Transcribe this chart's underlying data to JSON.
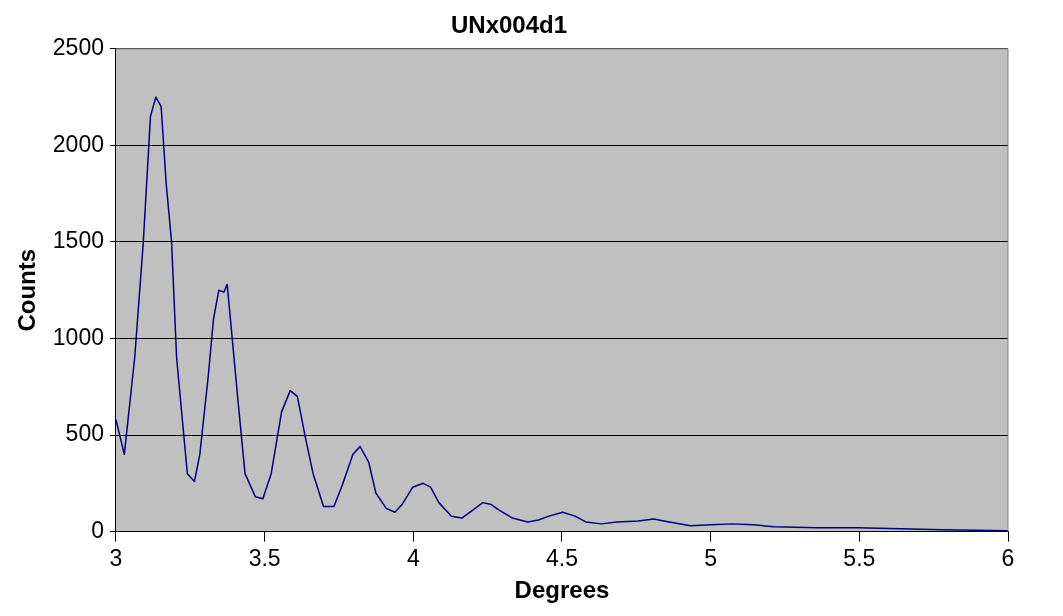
{
  "chart_data": {
    "type": "line",
    "title": "UNx004d1",
    "xlabel": "Degrees",
    "ylabel": "Counts",
    "xlim": [
      3,
      6
    ],
    "xticks": [
      3,
      3.5,
      4,
      4.5,
      5,
      5.5,
      6
    ],
    "ylim": [
      0,
      2500
    ],
    "yticks": [
      0,
      500,
      1000,
      1500,
      2000,
      2500
    ],
    "grid": "y",
    "legend": false,
    "marker": "none",
    "series": [
      {
        "color": "#000080",
        "x": [
          3.0,
          3.028,
          3.063,
          3.092,
          3.116,
          3.134,
          3.152,
          3.169,
          3.187,
          3.204,
          3.222,
          3.24,
          3.264,
          3.282,
          3.31,
          3.328,
          3.346,
          3.363,
          3.374,
          3.388,
          3.409,
          3.434,
          3.469,
          3.494,
          3.522,
          3.557,
          3.586,
          3.61,
          3.638,
          3.663,
          3.698,
          3.733,
          3.761,
          3.797,
          3.821,
          3.85,
          3.874,
          3.909,
          3.938,
          3.962,
          3.998,
          4.033,
          4.058,
          4.086,
          4.128,
          4.163,
          4.199,
          4.234,
          4.262,
          4.29,
          4.333,
          4.385,
          4.421,
          4.456,
          4.502,
          4.544,
          4.58,
          4.632,
          4.685,
          4.756,
          4.808,
          4.861,
          4.932,
          5.002,
          5.073,
          5.143,
          5.214,
          5.355,
          5.496,
          5.637,
          5.778,
          6.0
        ],
        "values": [
          580,
          400,
          900,
          1500,
          2150,
          2250,
          2200,
          1800,
          1500,
          900,
          600,
          300,
          260,
          400,
          800,
          1100,
          1250,
          1240,
          1280,
          1050,
          700,
          300,
          180,
          170,
          300,
          620,
          730,
          700,
          480,
          300,
          130,
          130,
          240,
          400,
          440,
          360,
          200,
          120,
          100,
          140,
          230,
          250,
          230,
          150,
          80,
          70,
          110,
          150,
          140,
          110,
          70,
          50,
          60,
          80,
          100,
          80,
          50,
          40,
          50,
          55,
          65,
          50,
          30,
          35,
          40,
          35,
          25,
          20,
          20,
          15,
          10,
          5
        ]
      }
    ]
  }
}
